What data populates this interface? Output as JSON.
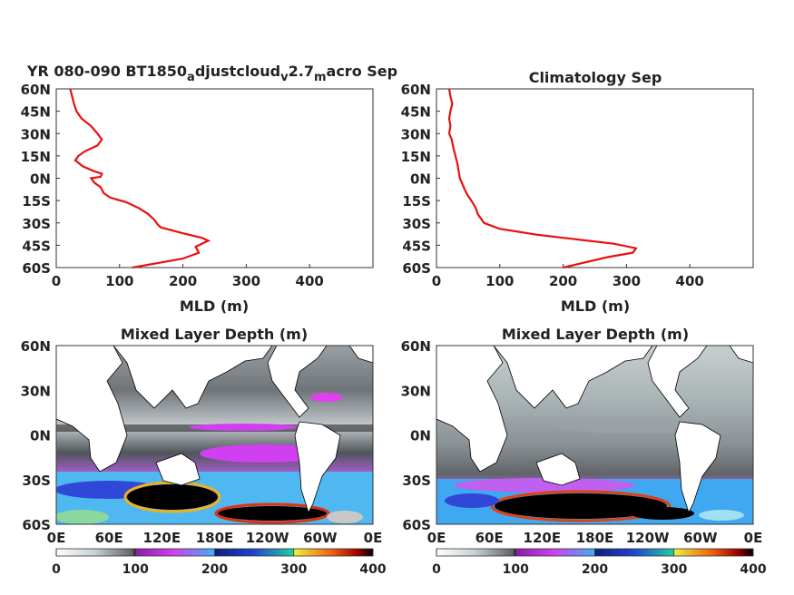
{
  "chart_data": [
    {
      "type": "line",
      "title": "YR 080-090 BT1850",
      "title_sub1": "a",
      "title_mid1": "djustcloud",
      "title_sub2": "v",
      "title_mid2": "2.7",
      "title_sub3": "m",
      "title_end": "acro Sep",
      "xlabel": "MLD (m)",
      "xlim": [
        0,
        500
      ],
      "ylim": [
        -60,
        60
      ],
      "xticks": [
        0,
        100,
        200,
        300,
        400
      ],
      "yticklabels": [
        "60N",
        "45N",
        "30N",
        "15N",
        "0N",
        "15S",
        "30S",
        "45S",
        "60S"
      ],
      "line_color": "#e81010",
      "points": [
        [
          22,
          60
        ],
        [
          25,
          55
        ],
        [
          28,
          50
        ],
        [
          32,
          45
        ],
        [
          40,
          40
        ],
        [
          55,
          35
        ],
        [
          65,
          30
        ],
        [
          72,
          26
        ],
        [
          65,
          22
        ],
        [
          45,
          18
        ],
        [
          35,
          15
        ],
        [
          30,
          12
        ],
        [
          42,
          8
        ],
        [
          58,
          5
        ],
        [
          72,
          3
        ],
        [
          70,
          1
        ],
        [
          55,
          0
        ],
        [
          60,
          -3
        ],
        [
          70,
          -6
        ],
        [
          75,
          -10
        ],
        [
          85,
          -13
        ],
        [
          110,
          -16
        ],
        [
          130,
          -20
        ],
        [
          145,
          -24
        ],
        [
          155,
          -28
        ],
        [
          160,
          -31
        ],
        [
          165,
          -33
        ],
        [
          200,
          -37
        ],
        [
          230,
          -40
        ],
        [
          240,
          -42
        ],
        [
          230,
          -44
        ],
        [
          220,
          -46
        ],
        [
          225,
          -50
        ],
        [
          200,
          -54
        ],
        [
          160,
          -57
        ],
        [
          120,
          -60
        ]
      ]
    },
    {
      "type": "line",
      "title": "Climatology Sep",
      "xlabel": "MLD (m)",
      "xlim": [
        0,
        500
      ],
      "ylim": [
        -60,
        60
      ],
      "xticks": [
        0,
        100,
        200,
        300,
        400
      ],
      "yticklabels": [
        "60N",
        "45N",
        "30N",
        "15N",
        "0N",
        "15S",
        "30S",
        "45S",
        "60S"
      ],
      "line_color": "#e81010",
      "points": [
        [
          20,
          60
        ],
        [
          22,
          55
        ],
        [
          25,
          50
        ],
        [
          22,
          45
        ],
        [
          20,
          40
        ],
        [
          22,
          35
        ],
        [
          20,
          30
        ],
        [
          24,
          26
        ],
        [
          27,
          20
        ],
        [
          30,
          15
        ],
        [
          33,
          10
        ],
        [
          35,
          5
        ],
        [
          37,
          0
        ],
        [
          40,
          -3
        ],
        [
          45,
          -8
        ],
        [
          50,
          -12
        ],
        [
          55,
          -15
        ],
        [
          62,
          -20
        ],
        [
          65,
          -24
        ],
        [
          70,
          -27
        ],
        [
          75,
          -30
        ],
        [
          100,
          -34
        ],
        [
          160,
          -38
        ],
        [
          220,
          -41
        ],
        [
          280,
          -44
        ],
        [
          315,
          -47
        ],
        [
          310,
          -50
        ],
        [
          270,
          -53
        ],
        [
          230,
          -57
        ],
        [
          200,
          -60
        ]
      ]
    },
    {
      "type": "heatmap",
      "title": "Mixed Layer Depth (m)",
      "xticklabels": [
        "0E",
        "60E",
        "120E",
        "180E",
        "120W",
        "60W",
        "0E"
      ],
      "yticklabels": [
        "60N",
        "30N",
        "0N",
        "30S",
        "60S"
      ],
      "colorbar_ticks": [
        "0",
        "100",
        "200",
        "300",
        "400"
      ]
    },
    {
      "type": "heatmap",
      "title": "Mixed Layer Depth (m)",
      "xticklabels": [
        "0E",
        "60E",
        "120E",
        "180E",
        "120W",
        "60W",
        "0E"
      ],
      "yticklabels": [
        "60N",
        "30N",
        "0N",
        "30S",
        "60S"
      ],
      "colorbar_ticks": [
        "0",
        "100",
        "200",
        "300",
        "400"
      ]
    }
  ]
}
